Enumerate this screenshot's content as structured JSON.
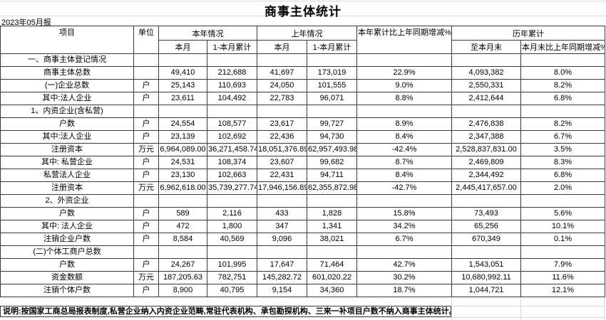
{
  "report": {
    "title": "商事主体统计",
    "period_label": "2023年05月报",
    "footnote": "说明:按国家工商总局报表制度,私营企业纳入内资企业范畴,常驻代表机构、承包勘探机构、三来一补项目户数不纳入商事主体统计。"
  },
  "colors": {
    "background": "#ffffff",
    "text": "#000000",
    "table_border": "#3a3a3a",
    "faint_gridline": "#d9d9d9"
  },
  "table": {
    "header": {
      "item": "项目",
      "unit": "单位",
      "group_this_year": "本年情况",
      "group_last_year": "上年情况",
      "col_yoy": "本年累计比上年同期增减%",
      "group_history": "历年累计",
      "sub": [
        "本月",
        "1-本月累计",
        "本月",
        "1-本月累计",
        "至本月末",
        "本月末比上年同期增减%"
      ]
    },
    "rows": [
      {
        "label": "一、商事主体登记情况",
        "unit": "",
        "values": [
          "",
          "",
          "",
          "",
          "",
          "",
          ""
        ],
        "bold": true,
        "indent": 0
      },
      {
        "label": "商事主体总数",
        "unit": "",
        "values": [
          "49,410",
          "212,688",
          "41,697",
          "173,019",
          "22.9%",
          "4,093,382",
          "8.0%"
        ],
        "bold": true,
        "indent": 0
      },
      {
        "label": "(一)企业总数",
        "unit": "户",
        "values": [
          "25,143",
          "110,693",
          "24,050",
          "101,555",
          "9.0%",
          "2,550,331",
          "8.2%"
        ],
        "bold": true,
        "indent": 0
      },
      {
        "label": "其中:法人企业",
        "unit": "户",
        "values": [
          "23,611",
          "104,492",
          "22,783",
          "96,071",
          "8.8%",
          "2,412,644",
          "6.8%"
        ],
        "bold": false,
        "indent": 1
      },
      {
        "label": "1、内资企业(含私营)",
        "unit": "",
        "values": [
          "",
          "",
          "",
          "",
          "",
          "",
          ""
        ],
        "bold": false,
        "indent": 0
      },
      {
        "label": "户数",
        "unit": "户",
        "values": [
          "24,554",
          "108,577",
          "23,617",
          "99,727",
          "8.9%",
          "2,476,838",
          "8.2%"
        ],
        "bold": false,
        "indent": 1
      },
      {
        "label": "其中:法人企业",
        "unit": "户",
        "values": [
          "23,139",
          "102,692",
          "22,436",
          "94,730",
          "8.4%",
          "2,347,388",
          "6.7%"
        ],
        "bold": false,
        "indent": 1
      },
      {
        "label": "注册资本",
        "unit": "万元",
        "values": [
          "6,964,089.00",
          "36,271,458.74",
          "18,051,376.89",
          "62,957,493.98",
          "-42.4%",
          "2,528,837,831.00",
          "3.5%"
        ],
        "bold": false,
        "indent": 1
      },
      {
        "label": "其中: 私营企业",
        "unit": "户",
        "values": [
          "24,531",
          "108,374",
          "23,607",
          "99,682",
          "8.7%",
          "2,469,809",
          "8.3%"
        ],
        "bold": false,
        "indent": 1
      },
      {
        "label": "私营法人企业",
        "unit": "户",
        "values": [
          "23,130",
          "102,663",
          "22,431",
          "94,711",
          "8.4%",
          "2,344,492",
          "6.8%"
        ],
        "bold": false,
        "indent": 3
      },
      {
        "label": "注册资本",
        "unit": "万元",
        "values": [
          "6,962,618.00",
          "35,739,277.74",
          "17,946,156.89",
          "62,355,872.98",
          "-42.7%",
          "2,445,417,657.00",
          "2.0%"
        ],
        "bold": false,
        "indent": 3
      },
      {
        "label": "2、外资企业",
        "unit": "",
        "values": [
          "",
          "",
          "",
          "",
          "",
          "",
          ""
        ],
        "bold": false,
        "indent": 0
      },
      {
        "label": "户数",
        "unit": "户",
        "values": [
          "589",
          "2,116",
          "433",
          "1,828",
          "15.8%",
          "73,493",
          "5.6%"
        ],
        "bold": false,
        "indent": 1
      },
      {
        "label": "其中: 法人企业",
        "unit": "户",
        "values": [
          "472",
          "1,800",
          "347",
          "1,341",
          "34.2%",
          "65,256",
          "10.1%"
        ],
        "bold": false,
        "indent": 1
      },
      {
        "label": "注销企业户数",
        "unit": "户",
        "values": [
          "8,584",
          "40,569",
          "9,096",
          "38,021",
          "6.7%",
          "670,349",
          "0.1%"
        ],
        "bold": false,
        "indent": 1
      },
      {
        "label": "(二)个体工商户总数",
        "unit": "",
        "values": [
          "",
          "",
          "",
          "",
          "",
          "",
          ""
        ],
        "bold": true,
        "indent": 0
      },
      {
        "label": "户数",
        "unit": "户",
        "values": [
          "24,267",
          "101,995",
          "17,647",
          "71,464",
          "42.7%",
          "1,543,051",
          "7.9%"
        ],
        "bold": false,
        "indent": 1
      },
      {
        "label": "资金数额",
        "unit": "万元",
        "values": [
          "187,205.63",
          "782,751",
          "145,282.72",
          "601,020.22",
          "30.2%",
          "10,680,992.11",
          "11.6%"
        ],
        "bold": false,
        "indent": 1
      },
      {
        "label": "注销个体户数",
        "unit": "户",
        "values": [
          "8,900",
          "40,795",
          "9,154",
          "34,360",
          "18.7%",
          "1,044,721",
          "12.1%"
        ],
        "bold": false,
        "indent": 1
      }
    ]
  }
}
